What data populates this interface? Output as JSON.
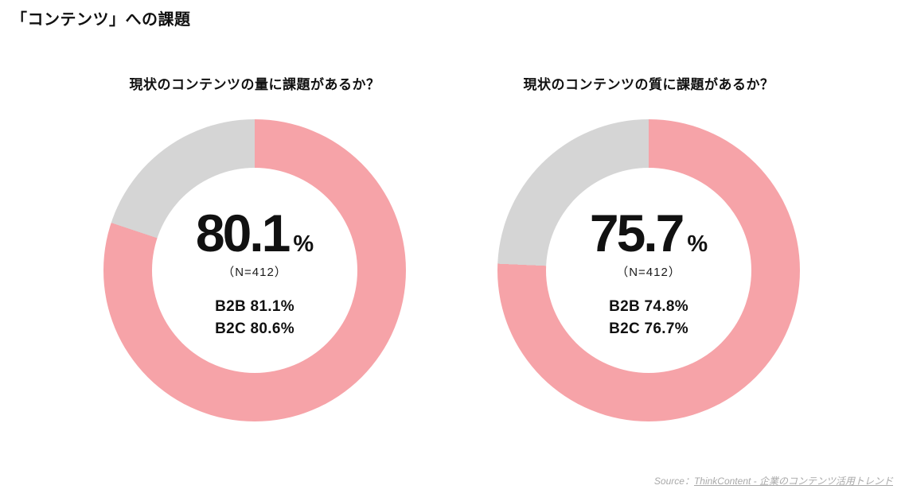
{
  "page": {
    "title": "「コンテンツ」への課題"
  },
  "colors": {
    "accent": "#F6A3A8",
    "muted": "#D5D5D5",
    "text": "#111111",
    "source_gray": "#A9A9A9"
  },
  "chart_data": [
    {
      "type": "pie",
      "subtype": "donut",
      "title": "現状のコンテンツの量に課題があるか？",
      "values": [
        80.1,
        19.9
      ],
      "slice_colors": [
        "#F6A3A8",
        "#D5D5D5"
      ],
      "start_angle_deg": 0,
      "direction": "clockwise",
      "legend": "none",
      "center_label": {
        "value": "80.1",
        "unit": "%",
        "sample": "（N=412）"
      },
      "breakdown": [
        "B2B 81.1%",
        "B2C 80.6%"
      ]
    },
    {
      "type": "pie",
      "subtype": "donut",
      "title": "現状のコンテンツの質に課題があるか？",
      "values": [
        75.7,
        24.3
      ],
      "slice_colors": [
        "#F6A3A8",
        "#D5D5D5"
      ],
      "start_angle_deg": 0,
      "direction": "clockwise",
      "legend": "none",
      "center_label": {
        "value": "75.7",
        "unit": "%",
        "sample": "（N=412）"
      },
      "breakdown": [
        "B2B 74.8%",
        "B2C 76.7%"
      ]
    }
  ],
  "source": {
    "label": "Source：",
    "link_text": "ThinkContent - 企業のコンテンツ活用トレンド"
  }
}
